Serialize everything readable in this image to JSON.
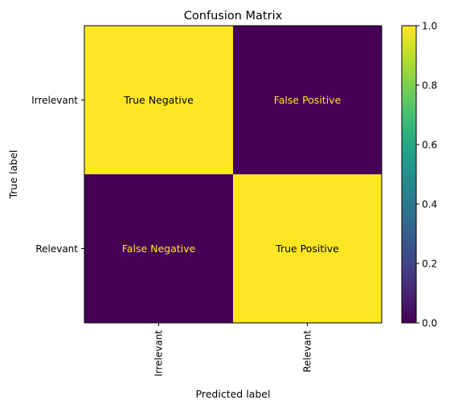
{
  "chart_data": {
    "type": "heatmap",
    "title": "Confusion Matrix",
    "xlabel": "Predicted label",
    "ylabel": "True label",
    "x_categories": [
      "Irrelevant",
      "Relevant"
    ],
    "y_categories": [
      "Irrelevant",
      "Relevant"
    ],
    "values": [
      [
        1,
        0
      ],
      [
        0,
        1
      ]
    ],
    "cell_labels": [
      [
        "True Negative",
        "False Positive"
      ],
      [
        "False Negative",
        "True Positive"
      ]
    ],
    "colormap": "viridis",
    "colorbar": {
      "range": [
        0,
        1
      ],
      "ticks": [
        "0.0",
        "0.2",
        "0.4",
        "0.6",
        "0.8",
        "1.0"
      ]
    },
    "colors": {
      "high": "#fde725",
      "low": "#440154",
      "text_on_high": "#000000",
      "text_on_low": "#fde725"
    },
    "x_tick_rotation": "vertical",
    "grid": false
  }
}
